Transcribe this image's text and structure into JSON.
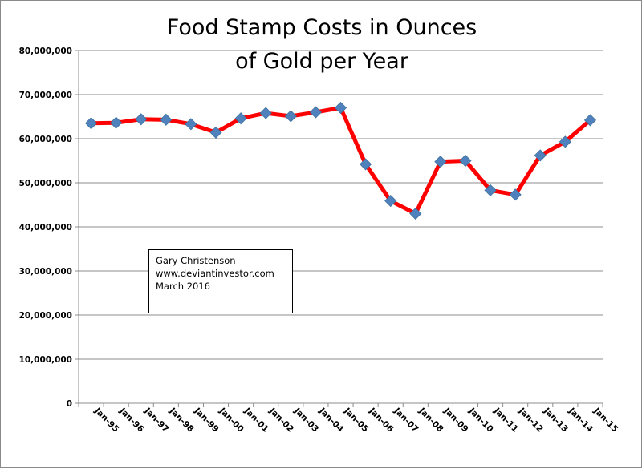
{
  "chart_data": {
    "type": "line",
    "title": "Food Stamp Costs in Ounces of Gold per Year",
    "title_lines": [
      "Food Stamp Costs in Ounces",
      "of Gold per Year"
    ],
    "xlabel": "",
    "ylabel": "",
    "categories": [
      "Jan-95",
      "Jan-96",
      "Jan-97",
      "Jan-98",
      "Jan-99",
      "Jan-00",
      "Jan-01",
      "Jan-02",
      "Jan-03",
      "Jan-04",
      "Jan-05",
      "Jan-06",
      "Jan-07",
      "Jan-08",
      "Jan-09",
      "Jan-10",
      "Jan-11",
      "Jan-12",
      "Jan-13",
      "Jan-14",
      "Jan-15"
    ],
    "series": [
      {
        "name": "Food Stamp Costs in Ounces of Gold",
        "values": [
          63500000,
          63600000,
          64400000,
          64300000,
          63300000,
          61400000,
          64600000,
          65800000,
          65100000,
          66000000,
          67000000,
          54200000,
          45900000,
          43000000,
          54800000,
          55000000,
          48300000,
          47300000,
          56200000,
          59300000,
          64200000
        ],
        "line_color": "#ff0000",
        "marker_color": "#4f81bd",
        "marker": "diamond"
      }
    ],
    "ylim": [
      0,
      80000000
    ],
    "yticks": [
      0,
      10000000,
      20000000,
      30000000,
      40000000,
      50000000,
      60000000,
      70000000,
      80000000
    ],
    "ytick_labels": [
      "0",
      "10,000,000",
      "20,000,000",
      "30,000,000",
      "40,000,000",
      "50,000,000",
      "60,000,000",
      "70,000,000",
      "80,000,000"
    ],
    "grid": "horizontal",
    "legend": "none",
    "annotation": {
      "lines": [
        "Gary Christenson",
        "www.deviantinvestor.com",
        "March 2016"
      ]
    }
  }
}
